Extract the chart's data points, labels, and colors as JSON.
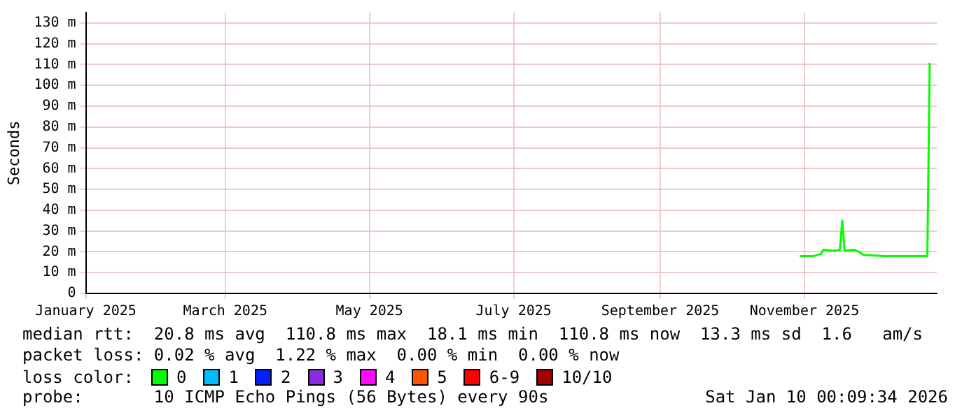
{
  "chart_data": {
    "type": "line",
    "ylabel": "Seconds",
    "x": [
      "2025-10-30",
      "2025-11-05",
      "2025-11-08",
      "2025-11-09",
      "2025-11-14",
      "2025-11-16",
      "2025-11-17",
      "2025-11-18",
      "2025-11-22",
      "2025-11-24",
      "2025-11-26",
      "2025-12-05",
      "2025-12-15",
      "2025-12-23",
      "2025-12-24"
    ],
    "series": [
      {
        "color": "#00ff00",
        "values": [
          18,
          18,
          19,
          21,
          20.5,
          21,
          35,
          20.5,
          21,
          20,
          18.5,
          18,
          18,
          18,
          110.8
        ]
      }
    ],
    "xlim": [
      "2025-01-01",
      "2025-12-27"
    ],
    "xticks": [
      {
        "value": "2025-01-01",
        "label": "January 2025"
      },
      {
        "value": "2025-03-01",
        "label": "March 2025"
      },
      {
        "value": "2025-05-01",
        "label": "May 2025"
      },
      {
        "value": "2025-07-01",
        "label": "July 2025"
      },
      {
        "value": "2025-09-01",
        "label": "September 2025"
      },
      {
        "value": "2025-11-01",
        "label": "November 2025"
      }
    ],
    "ylim": [
      0,
      135
    ],
    "yticks": [
      0,
      {
        "value": 10,
        "label": "10 m"
      },
      {
        "value": 20,
        "label": "20 m"
      },
      {
        "value": 30,
        "label": "30 m"
      },
      {
        "value": 40,
        "label": "40 m"
      },
      {
        "value": 50,
        "label": "50 m"
      },
      {
        "value": 60,
        "label": "60 m"
      },
      {
        "value": 70,
        "label": "70 m"
      },
      {
        "value": 80,
        "label": "80 m"
      },
      {
        "value": 90,
        "label": "90 m"
      },
      {
        "value": 100,
        "label": "100 m"
      },
      {
        "value": 110,
        "label": "110 m"
      },
      {
        "value": 120,
        "label": "120 m"
      },
      {
        "value": 130,
        "label": "130 m"
      }
    ],
    "grid": true,
    "legend": false,
    "marker": "none",
    "line_style": "solid",
    "annotations": [
      "median rtt:  20.8 ms avg  110.8 ms max  18.1 ms min  110.8 ms now  13.3 ms sd  1.6   am/s",
      "packet loss: 0.02 % avg  1.22 % max  0.00 % min  0.00 % now",
      "loss color:",
      "0",
      "1",
      "2",
      "3",
      "4",
      "5",
      "6-9",
      "10/10",
      "probe:       10 ICMP Echo Pings (56 Bytes) every 90s",
      "Sat Jan 10 00:09:34 2026"
    ]
  }
}
